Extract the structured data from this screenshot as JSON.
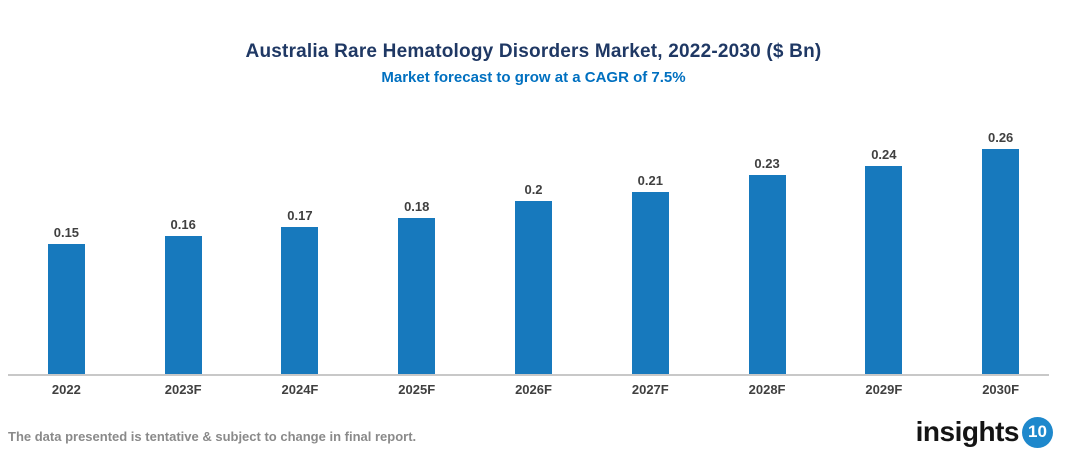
{
  "chart": {
    "title": "Australia Rare Hematology Disorders Market, 2022-2030 ($ Bn)",
    "subtitle": "Market forecast to grow at a CAGR of 7.5%"
  },
  "chart_data": {
    "type": "bar",
    "title": "Australia Rare Hematology Disorders Market, 2022-2030 ($ Bn)",
    "subtitle": "Market forecast to grow at a CAGR of 7.5%",
    "categories": [
      "2022",
      "2023F",
      "2024F",
      "2025F",
      "2026F",
      "2027F",
      "2028F",
      "2029F",
      "2030F"
    ],
    "values": [
      0.15,
      0.16,
      0.17,
      0.18,
      0.2,
      0.21,
      0.23,
      0.24,
      0.26
    ],
    "xlabel": "",
    "ylabel": "",
    "ylim": [
      0,
      0.29
    ],
    "grid": false,
    "legend": false,
    "value_labels_shown": true,
    "bar_color": "#1779bd"
  },
  "footer": {
    "disclaimer": "The data presented is tentative & subject to change in final report.",
    "logo_text": "insights",
    "logo_number": "10"
  },
  "colors": {
    "title": "#1f3864",
    "subtitle": "#0070c0",
    "bar": "#1779bd",
    "axis_line": "#c8c8c8",
    "tick_label": "#404040",
    "disclaimer": "#8a8a8a",
    "logo_circle": "#1e88cc"
  }
}
